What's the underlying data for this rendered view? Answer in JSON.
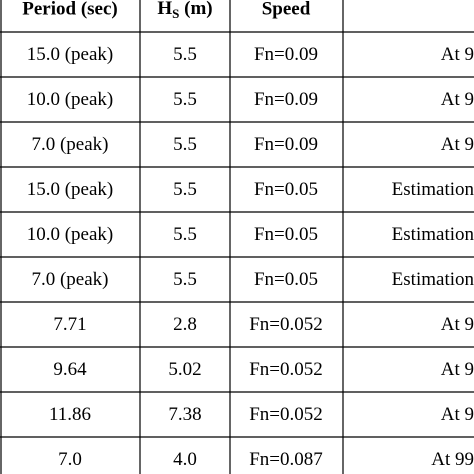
{
  "table": {
    "header": {
      "period": "Period (sec)",
      "hs_main": "H",
      "hs_sub": "S",
      "hs_unit": " (m)",
      "speed": "Speed"
    },
    "rows": [
      [
        "15.0 (peak)",
        "5.5",
        "Fn=0.09",
        "At 9"
      ],
      [
        "10.0 (peak)",
        "5.5",
        "Fn=0.09",
        "At 9"
      ],
      [
        "7.0 (peak)",
        "5.5",
        "Fn=0.09",
        "At 9"
      ],
      [
        "15.0 (peak)",
        "5.5",
        "Fn=0.05",
        "Estimation"
      ],
      [
        "10.0 (peak)",
        "5.5",
        "Fn=0.05",
        "Estimation"
      ],
      [
        "7.0 (peak)",
        "5.5",
        "Fn=0.05",
        "Estimation"
      ],
      [
        "7.71",
        "2.8",
        "Fn=0.052",
        "At 9"
      ],
      [
        "9.64",
        "5.02",
        "Fn=0.052",
        "At 9"
      ],
      [
        "11.86",
        "7.38",
        "Fn=0.052",
        "At 9"
      ],
      [
        "7.0",
        "4.0",
        "Fn=0.087",
        "At 99"
      ]
    ]
  }
}
